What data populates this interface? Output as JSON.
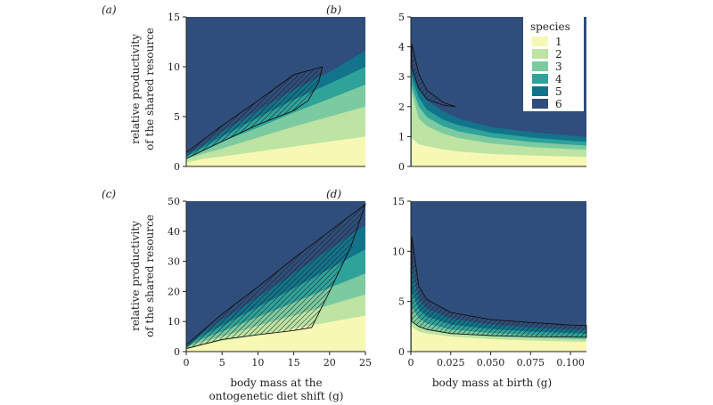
{
  "palette": [
    "#f7f8b4",
    "#bde4a3",
    "#7ccaa0",
    "#2fa29a",
    "#12748b",
    "#2f4e7b"
  ],
  "legend": {
    "title": "species",
    "entries": [
      "1",
      "2",
      "3",
      "4",
      "5",
      "6"
    ]
  },
  "ylabel_lines": [
    "relative productivity",
    "of the shared resource"
  ],
  "xlabel_left_lines": [
    "body mass at the",
    "ontogenetic diet shift (g)"
  ],
  "xlabel_right": "body mass at birth (g)",
  "chart_data": [
    {
      "panel": "(a)",
      "type": "area",
      "xlim": [
        0,
        25
      ],
      "ylim": [
        0,
        15
      ],
      "x": [
        0,
        2,
        5,
        10,
        15,
        20,
        25
      ],
      "boundaries": [
        [
          0.4,
          0.7,
          1.0,
          1.5,
          2.0,
          2.5,
          3.0
        ],
        [
          0.7,
          1.2,
          1.8,
          2.9,
          4.0,
          5.0,
          6.0
        ],
        [
          0.9,
          1.5,
          2.5,
          3.9,
          5.4,
          6.8,
          8.2
        ],
        [
          1.0,
          1.8,
          3.0,
          4.9,
          6.7,
          8.3,
          10.0
        ],
        [
          1.2,
          2.0,
          3.5,
          5.6,
          7.7,
          9.5,
          11.6
        ],
        [
          1.4,
          2.4,
          4.1,
          6.6,
          9.2,
          11.5,
          13.5
        ]
      ],
      "hatch": {
        "upper": [
          [
            0,
            1.4
          ],
          [
            5,
            4.1
          ],
          [
            10,
            6.6
          ],
          [
            15,
            9.2
          ],
          [
            19,
            10.0
          ]
        ],
        "lower": [
          [
            0,
            0.8
          ],
          [
            5,
            2.5
          ],
          [
            10,
            4.2
          ],
          [
            15,
            5.6
          ],
          [
            17,
            6.6
          ],
          [
            18.5,
            8.5
          ],
          [
            19,
            10.0
          ]
        ]
      },
      "xticks": [],
      "yticks": [
        0,
        5,
        10,
        15
      ]
    },
    {
      "panel": "(b)",
      "type": "area",
      "xlim": [
        0,
        0.11
      ],
      "ylim": [
        0,
        5
      ],
      "x": [
        0.0005,
        0.005,
        0.01,
        0.02,
        0.03,
        0.05,
        0.075,
        0.1,
        0.11
      ],
      "boundaries": [
        [
          0.95,
          0.74,
          0.68,
          0.57,
          0.5,
          0.42,
          0.37,
          0.33,
          0.32
        ],
        [
          2.5,
          1.6,
          1.35,
          1.1,
          0.95,
          0.77,
          0.65,
          0.58,
          0.56
        ],
        [
          2.7,
          2.0,
          1.65,
          1.35,
          1.17,
          0.97,
          0.82,
          0.73,
          0.7
        ],
        [
          3.0,
          2.3,
          1.9,
          1.57,
          1.38,
          1.13,
          0.97,
          0.86,
          0.83
        ],
        [
          3.3,
          2.6,
          2.2,
          1.85,
          1.6,
          1.32,
          1.15,
          1.03,
          0.98
        ],
        [
          4.1,
          3.1,
          2.55,
          2.15,
          1.9,
          1.58,
          1.38,
          1.22,
          1.16
        ]
      ],
      "hatch": {
        "upper": [
          [
            0.0005,
            4.1
          ],
          [
            0.005,
            3.1
          ],
          [
            0.01,
            2.55
          ],
          [
            0.02,
            2.15
          ],
          [
            0.028,
            2.0
          ]
        ],
        "lower": [
          [
            0.0005,
            3.3
          ],
          [
            0.005,
            2.6
          ],
          [
            0.01,
            2.25
          ],
          [
            0.02,
            2.05
          ],
          [
            0.028,
            2.0
          ]
        ]
      },
      "xticks": [],
      "yticks": [
        0,
        1,
        2,
        3,
        4,
        5
      ]
    },
    {
      "panel": "(c)",
      "type": "area",
      "xlim": [
        0,
        25
      ],
      "ylim": [
        0,
        50
      ],
      "x": [
        0,
        2,
        5,
        10,
        15,
        20,
        25
      ],
      "boundaries": [
        [
          1.0,
          2.2,
          3.5,
          5.6,
          7.6,
          9.8,
          12.0
        ],
        [
          1.2,
          3.1,
          5.0,
          8.6,
          12.0,
          15.5,
          19.0
        ],
        [
          1.4,
          4.0,
          6.7,
          11.5,
          16.3,
          21.2,
          26.0
        ],
        [
          1.6,
          5.0,
          8.6,
          14.8,
          21.0,
          27.5,
          34.0
        ],
        [
          1.9,
          6.0,
          10.5,
          18.0,
          26.0,
          34.0,
          42.0
        ],
        [
          2.2,
          7.0,
          12.5,
          21.5,
          31.0,
          40.0,
          49.0
        ]
      ],
      "hatch": {
        "upper": [
          [
            0,
            2.2
          ],
          [
            5,
            12.5
          ],
          [
            10,
            21.5
          ],
          [
            15,
            31.0
          ],
          [
            20,
            40.0
          ],
          [
            25,
            49.0
          ]
        ],
        "lower": [
          [
            0,
            1.0
          ],
          [
            5,
            4.0
          ],
          [
            10,
            5.6
          ],
          [
            15,
            7.0
          ],
          [
            17.5,
            8.0
          ],
          [
            20,
            20.0
          ],
          [
            23,
            35.0
          ],
          [
            25,
            49.0
          ]
        ]
      },
      "xticks": [
        0,
        5,
        10,
        15,
        20,
        25
      ],
      "yticks": [
        0,
        10,
        20,
        30,
        40,
        50
      ]
    },
    {
      "panel": "(d)",
      "type": "area",
      "xlim": [
        0,
        0.11
      ],
      "ylim": [
        0,
        15
      ],
      "x": [
        0.0005,
        0.005,
        0.01,
        0.025,
        0.05,
        0.075,
        0.1,
        0.11
      ],
      "boundaries": [
        [
          2.5,
          2.0,
          1.8,
          1.5,
          1.25,
          1.1,
          1.0,
          0.98
        ],
        [
          3.0,
          2.5,
          2.2,
          1.8,
          1.5,
          1.35,
          1.25,
          1.2
        ],
        [
          4.5,
          3.3,
          2.8,
          2.2,
          1.85,
          1.65,
          1.5,
          1.45
        ],
        [
          6.0,
          4.2,
          3.5,
          2.7,
          2.25,
          2.0,
          1.85,
          1.8
        ],
        [
          8.5,
          5.2,
          4.3,
          3.3,
          2.7,
          2.4,
          2.2,
          2.15
        ],
        [
          11.5,
          6.5,
          5.2,
          3.9,
          3.2,
          2.9,
          2.65,
          2.6
        ]
      ],
      "hatch": {
        "upper": [
          [
            0.0005,
            11.5
          ],
          [
            0.005,
            6.5
          ],
          [
            0.01,
            5.2
          ],
          [
            0.025,
            3.9
          ],
          [
            0.05,
            3.2
          ],
          [
            0.075,
            2.9
          ],
          [
            0.1,
            2.65
          ],
          [
            0.11,
            2.6
          ]
        ],
        "lower": [
          [
            0.0005,
            3.0
          ],
          [
            0.005,
            2.5
          ],
          [
            0.01,
            2.2
          ],
          [
            0.025,
            1.8
          ],
          [
            0.05,
            1.6
          ],
          [
            0.075,
            1.5
          ],
          [
            0.1,
            1.45
          ],
          [
            0.11,
            1.43
          ]
        ]
      },
      "xticks": [
        0,
        0.025,
        0.05,
        0.075,
        0.1
      ],
      "xticklabels": [
        "0",
        "0.025",
        "0.050",
        "0.075",
        "0.100"
      ],
      "yticks": [
        0,
        5,
        10,
        15
      ]
    }
  ]
}
